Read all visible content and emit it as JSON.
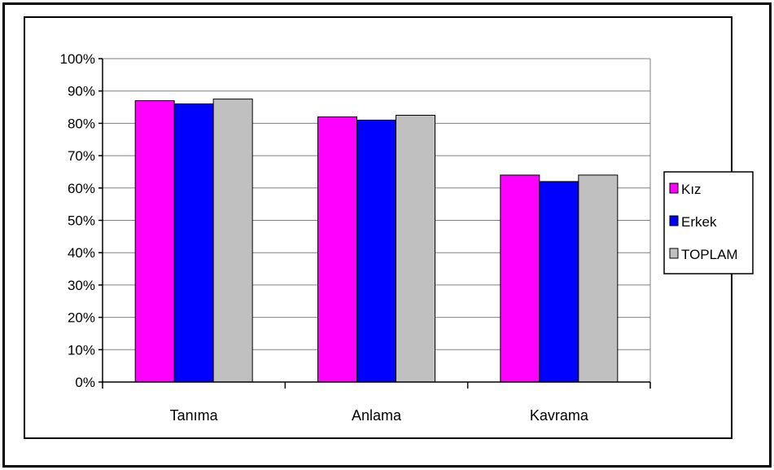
{
  "chart_data": {
    "type": "bar",
    "title": "",
    "xlabel": "",
    "ylabel": "",
    "categories": [
      "Tanıma",
      "Anlama",
      "Kavrama"
    ],
    "series": [
      {
        "name": "Kız",
        "values": [
          87,
          82,
          64
        ],
        "color": "#ff00ff"
      },
      {
        "name": "Erkek",
        "values": [
          86,
          81,
          62
        ],
        "color": "#0000ff"
      },
      {
        "name": "TOPLAM",
        "values": [
          87.5,
          82.5,
          64
        ],
        "color": "#c0c0c0"
      }
    ],
    "ylim": [
      0,
      100
    ],
    "yticks": [
      "0%",
      "10%",
      "20%",
      "30%",
      "40%",
      "50%",
      "60%",
      "70%",
      "80%",
      "90%",
      "100%"
    ],
    "grid": true,
    "legend_position": "right",
    "colors": {
      "plot_background": "#ffffff",
      "gridline": "#808080",
      "axis": "#000000"
    }
  }
}
